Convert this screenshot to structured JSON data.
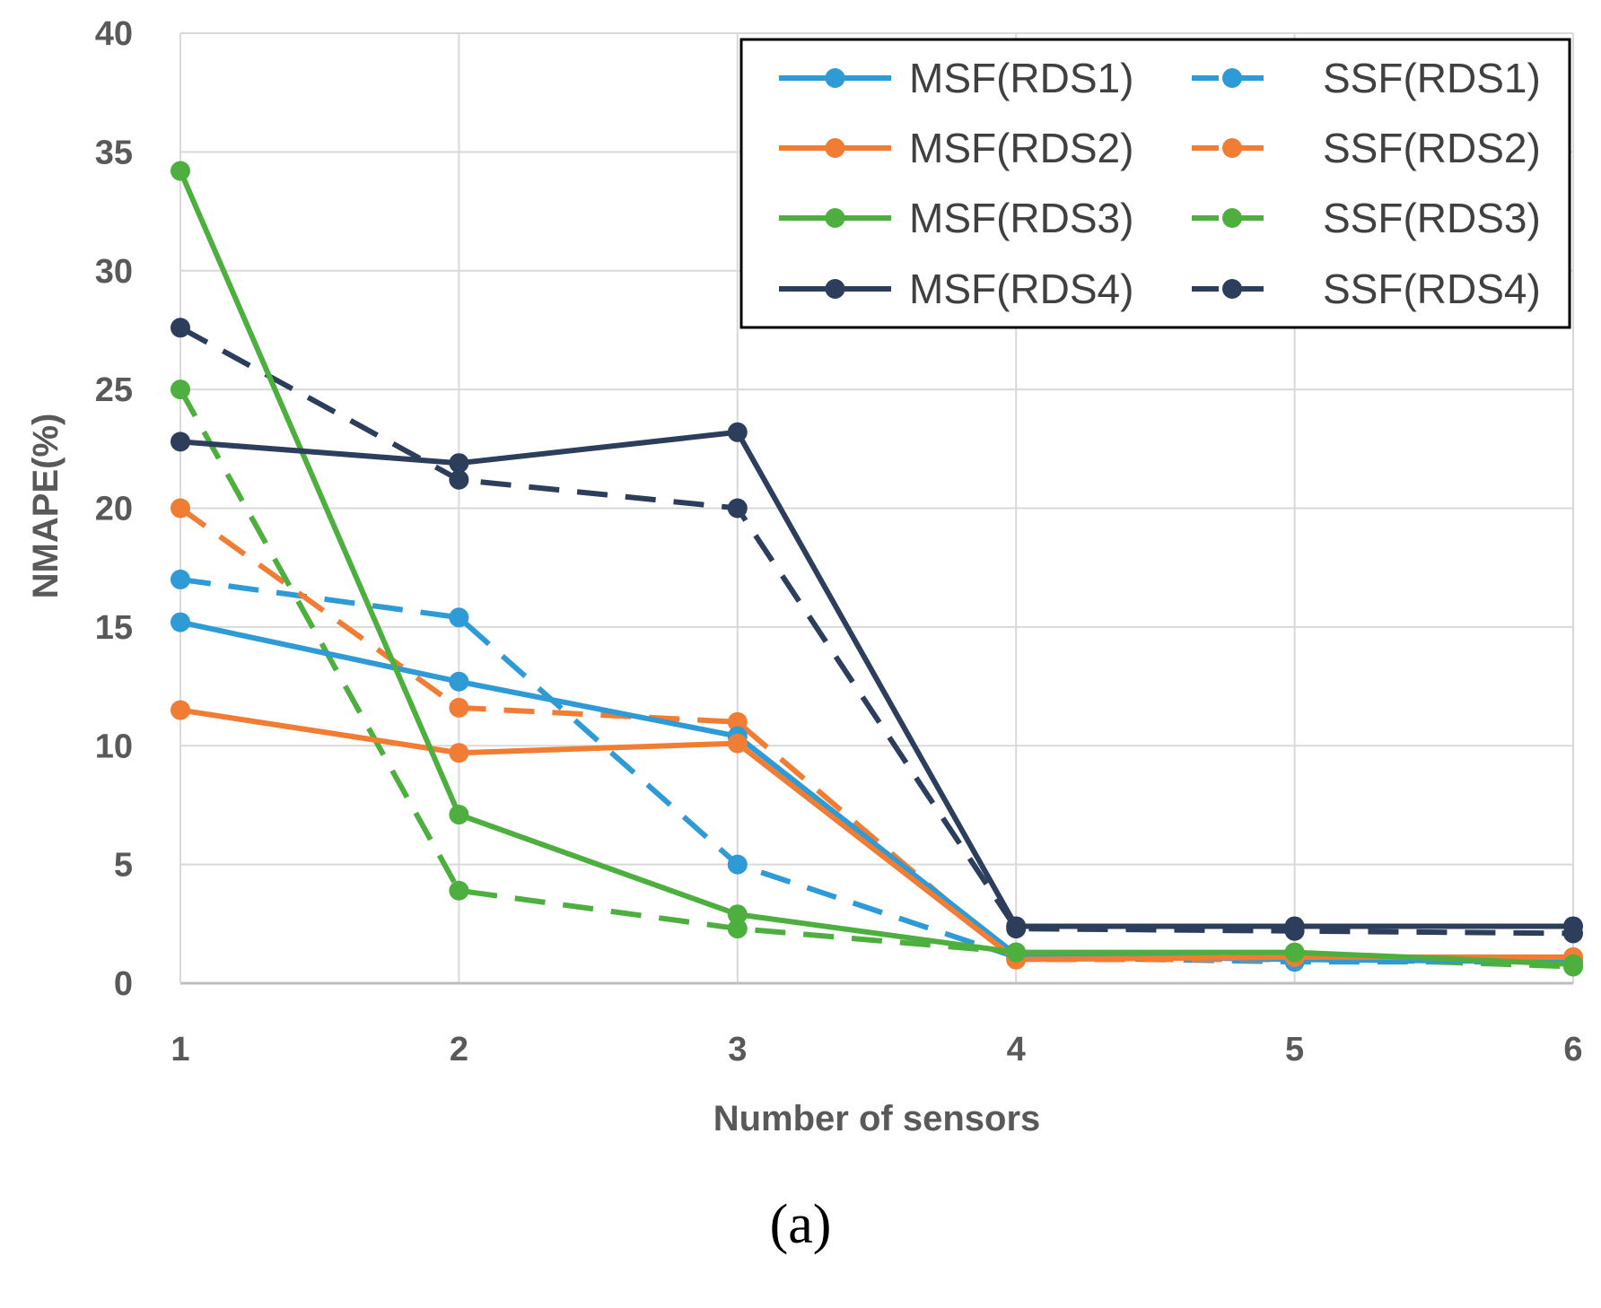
{
  "chart_data": {
    "type": "line",
    "xlabel": "Number of sensors",
    "ylabel": "NMAPE(%)",
    "x": [
      1,
      2,
      3,
      4,
      5,
      6
    ],
    "x_tick_labels": [
      "1",
      "2",
      "3",
      "4",
      "5",
      "6"
    ],
    "y_tick_labels": [
      "0",
      "5",
      "10",
      "15",
      "20",
      "25",
      "30",
      "35",
      "40"
    ],
    "ylim": [
      0,
      40
    ],
    "xlim": [
      1,
      6
    ],
    "grid": true,
    "legend_position": "top-right",
    "series": [
      {
        "name": "MSF(RDS1)",
        "color": "#2e9bd6",
        "dash": "solid",
        "values": [
          15.2,
          12.7,
          10.4,
          1.2,
          1.0,
          0.9
        ]
      },
      {
        "name": "SSF(RDS1)",
        "color": "#2e9bd6",
        "dash": "dashed",
        "values": [
          17.0,
          15.4,
          5.0,
          1.1,
          0.9,
          0.9
        ]
      },
      {
        "name": "MSF(RDS2)",
        "color": "#f07d33",
        "dash": "solid",
        "values": [
          11.5,
          9.7,
          10.1,
          1.0,
          1.1,
          1.1
        ]
      },
      {
        "name": "SSF(RDS2)",
        "color": "#f07d33",
        "dash": "dashed",
        "values": [
          20.0,
          11.6,
          11.0,
          1.0,
          1.0,
          1.0
        ]
      },
      {
        "name": "MSF(RDS3)",
        "color": "#4caf3e",
        "dash": "solid",
        "values": [
          34.2,
          7.1,
          2.9,
          1.3,
          1.3,
          0.8
        ]
      },
      {
        "name": "SSF(RDS3)",
        "color": "#4caf3e",
        "dash": "dashed",
        "values": [
          25.0,
          3.9,
          2.3,
          1.3,
          1.1,
          0.7
        ]
      },
      {
        "name": "MSF(RDS4)",
        "color": "#2c3e5c",
        "dash": "solid",
        "values": [
          22.8,
          21.9,
          23.2,
          2.4,
          2.4,
          2.4
        ]
      },
      {
        "name": "SSF(RDS4)",
        "color": "#2c3e5c",
        "dash": "dashed",
        "values": [
          27.6,
          21.2,
          20.0,
          2.3,
          2.2,
          2.1
        ]
      }
    ]
  },
  "caption": "(a)"
}
